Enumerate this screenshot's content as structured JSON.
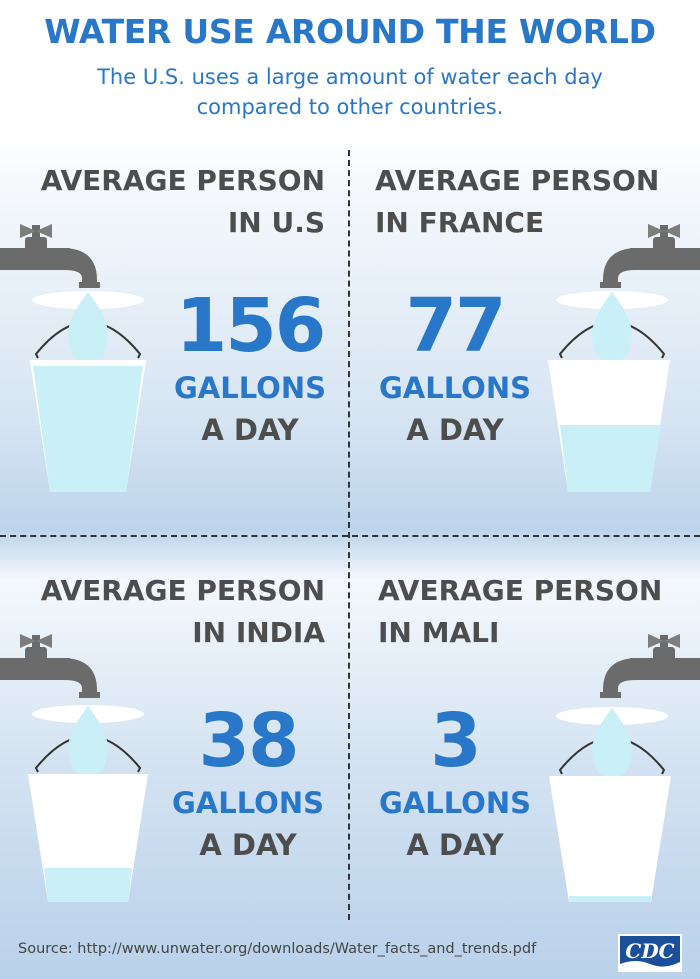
{
  "header": {
    "title": "WATER USE AROUND THE WORLD",
    "subtitle": "The U.S. uses a large amount of water each day compared to other countries."
  },
  "panels": [
    {
      "heading_line1": "AVERAGE PERSON",
      "heading_line2": "IN U.S",
      "value": "156",
      "unit": "GALLONS",
      "per": "A DAY",
      "bucket_fill_fraction": 0.95
    },
    {
      "heading_line1": "AVERAGE PERSON",
      "heading_line2": "IN FRANCE",
      "value": "77",
      "unit": "GALLONS",
      "per": "A DAY",
      "bucket_fill_fraction": 0.5
    },
    {
      "heading_line1": "AVERAGE PERSON",
      "heading_line2": "IN INDIA",
      "value": "38",
      "unit": "GALLONS",
      "per": "A DAY",
      "bucket_fill_fraction": 0.22
    },
    {
      "heading_line1": "AVERAGE PERSON",
      "heading_line2": "IN MALI",
      "value": "3",
      "unit": "GALLONS",
      "per": "A DAY",
      "bucket_fill_fraction": 0.03
    }
  ],
  "footer": {
    "source": "Source: http://www.unwater.org/downloads/Water_facts_and_trends.pdf",
    "logo_text": "CDC"
  },
  "colors": {
    "accent_blue": "#2877c9",
    "heading_gray": "#4d4d4d",
    "water": "#c9f0f6",
    "bucket": "#ffffff",
    "faucet": "#6b6b6b"
  },
  "icons": [
    "faucet-icon",
    "water-drop-icon",
    "bucket-icon",
    "cdc-logo"
  ]
}
